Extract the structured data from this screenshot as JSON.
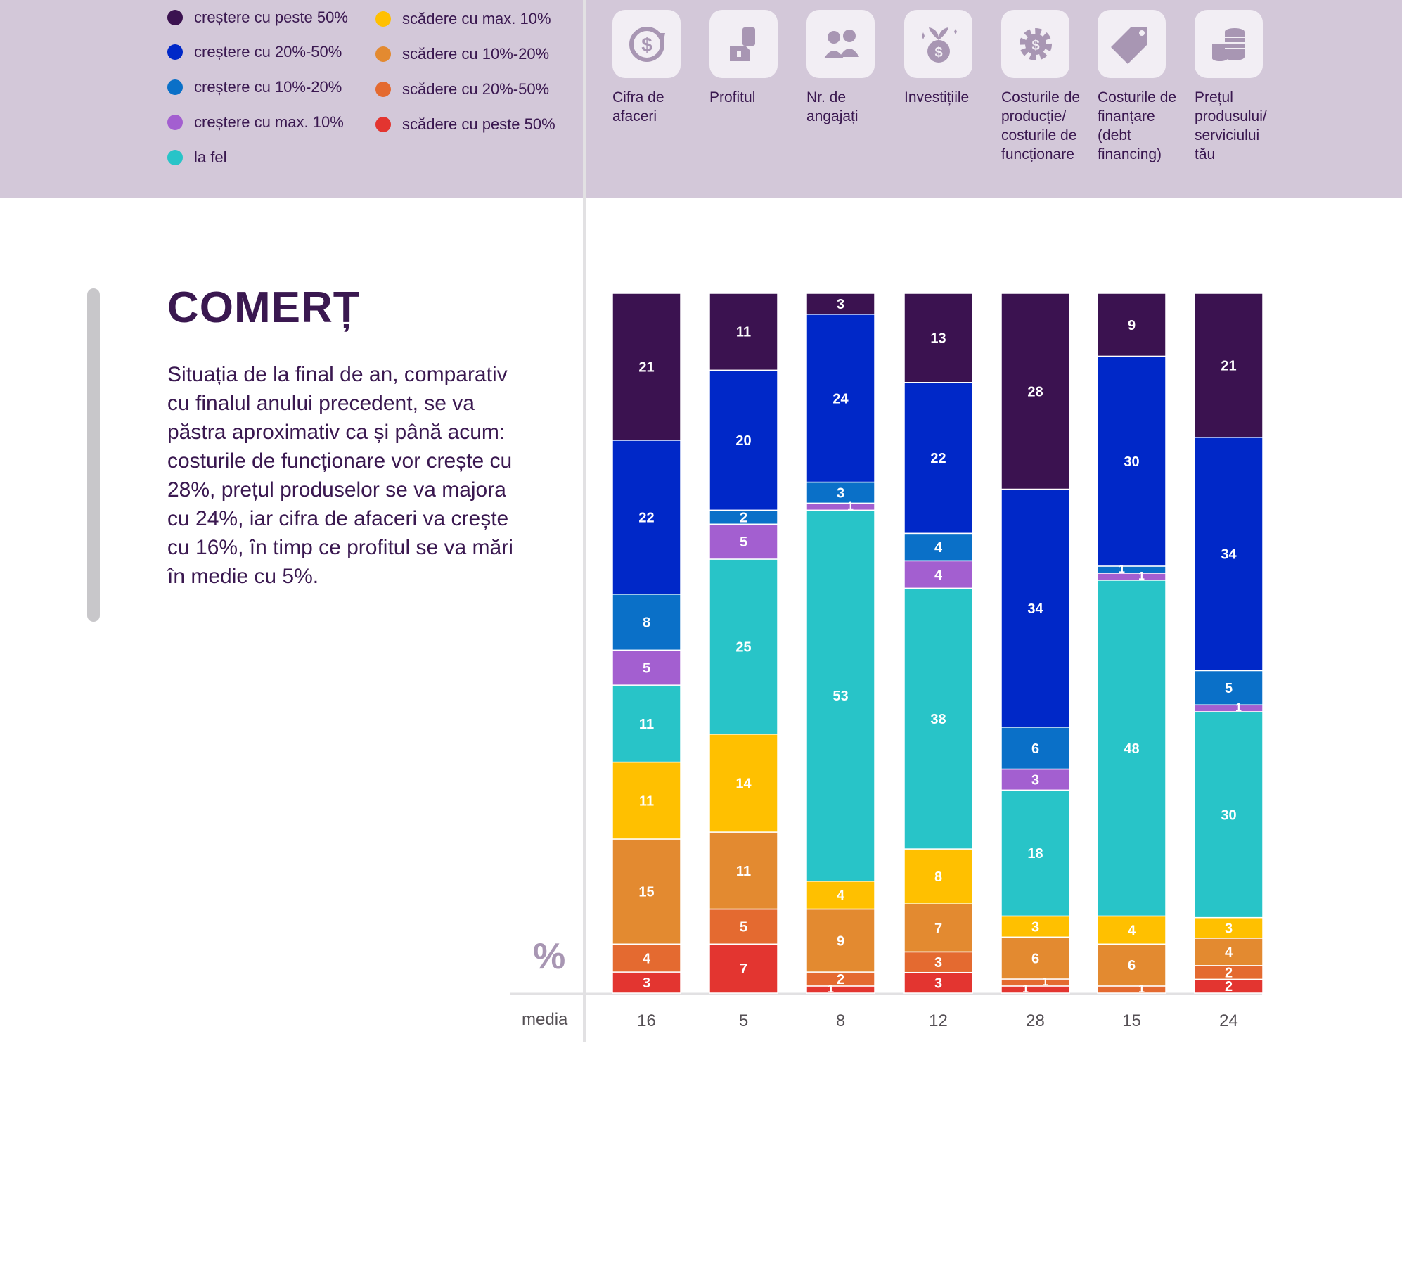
{
  "legend": [
    {
      "label": "creștere cu peste 50%",
      "color": "#3b1250"
    },
    {
      "label": "creștere cu 20%-50%",
      "color": "#0028c8"
    },
    {
      "label": "creștere cu 10%-20%",
      "color": "#0a70c8"
    },
    {
      "label": "creștere cu max. 10%",
      "color": "#a35fd0"
    },
    {
      "label": "la fel",
      "color": "#28c4c8"
    },
    {
      "label": "scădere cu max. 10%",
      "color": "#ffc000"
    },
    {
      "label": "scădere cu 10%-20%",
      "color": "#e38a30"
    },
    {
      "label": "scădere cu 20%-50%",
      "color": "#e46a30"
    },
    {
      "label": "scădere cu peste 50%",
      "color": "#e33530"
    }
  ],
  "categories": [
    {
      "label": "Cifra de\nafaceri",
      "icon": "revenue-icon"
    },
    {
      "label": "Profitul",
      "icon": "profit-icon"
    },
    {
      "label": "Nr. de\nangajați",
      "icon": "employees-icon"
    },
    {
      "label": "Investițiile",
      "icon": "investment-icon"
    },
    {
      "label": "Costurile de\nproducție/\ncosturile de\nfuncționare",
      "icon": "cost-gear-icon"
    },
    {
      "label": "Costurile de\nfinanțare\n(debt\nfinancing)",
      "icon": "price-tag-icon"
    },
    {
      "label": "Prețul\nprodusului/\nserviciului\ntău",
      "icon": "coins-icon"
    }
  ],
  "section": {
    "title": "COMERȚ",
    "text": "Situația de la final de an, comparativ cu finalul anului precedent, se va păstra aproximativ ca și până acum: costurile de funcționare vor crește cu 28%, prețul produselor se va majora cu 24%, iar cifra de afaceri va crește cu 16%, în timp ce profitul se va mări în medie cu 5%."
  },
  "chart_data": {
    "type": "bar",
    "stacked": true,
    "unit_label": "%",
    "average_label": "media",
    "categories": [
      "Cifra de afaceri",
      "Profitul",
      "Nr. de angajați",
      "Investițiile",
      "Costurile de producție/costurile de funcționare",
      "Costurile de finanțare (debt financing)",
      "Prețul produsului/serviciului tău"
    ],
    "series": [
      {
        "name": "creștere cu peste 50%",
        "color": "#3b1250",
        "values": [
          21,
          11,
          3,
          13,
          28,
          9,
          21
        ]
      },
      {
        "name": "creștere cu 20%-50%",
        "color": "#0028c8",
        "values": [
          22,
          20,
          24,
          22,
          34,
          30,
          34
        ]
      },
      {
        "name": "creștere cu 10%-20%",
        "color": "#0a70c8",
        "values": [
          8,
          2,
          3,
          4,
          6,
          1,
          5
        ]
      },
      {
        "name": "creștere cu max. 10%",
        "color": "#a35fd0",
        "values": [
          5,
          5,
          1,
          4,
          3,
          1,
          1
        ]
      },
      {
        "name": "la fel",
        "color": "#28c4c8",
        "values": [
          11,
          25,
          53,
          38,
          18,
          48,
          30
        ]
      },
      {
        "name": "scădere cu max. 10%",
        "color": "#ffc000",
        "values": [
          11,
          14,
          4,
          8,
          3,
          4,
          3
        ]
      },
      {
        "name": "scădere cu 10%-20%",
        "color": "#e38a30",
        "values": [
          15,
          11,
          9,
          7,
          6,
          6,
          4
        ]
      },
      {
        "name": "scădere cu 20%-50%",
        "color": "#e46a30",
        "values": [
          4,
          5,
          2,
          3,
          1,
          1,
          2
        ]
      },
      {
        "name": "scădere cu peste 50%",
        "color": "#e33530",
        "values": [
          3,
          7,
          1,
          3,
          1,
          0,
          2
        ]
      }
    ],
    "averages": [
      16,
      5,
      8,
      12,
      28,
      15,
      24
    ]
  }
}
